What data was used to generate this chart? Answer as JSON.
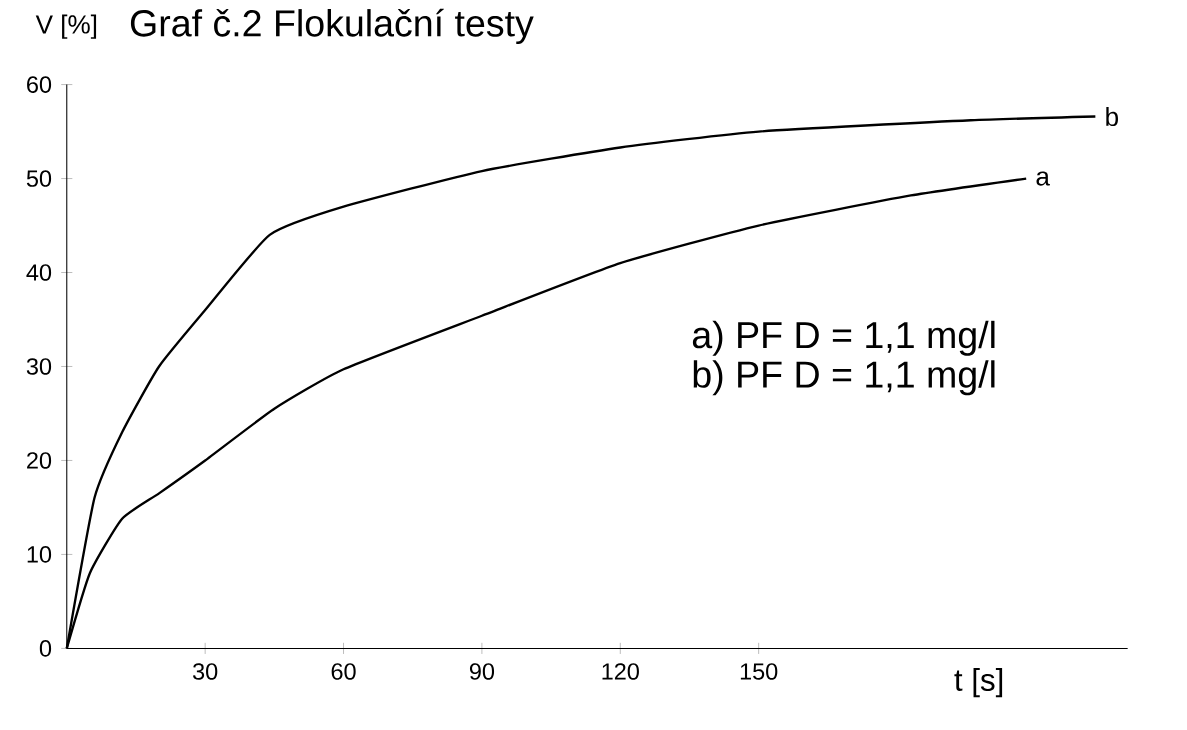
{
  "chart_data": {
    "type": "line",
    "title": "Graf č.2 Flokulační testy",
    "xlabel": "t [s]",
    "ylabel": "V [%]",
    "series": [
      {
        "name": "a",
        "color": "#000000",
        "x": [
          0,
          5,
          12,
          20,
          30,
          45,
          60,
          90,
          120,
          150,
          183,
          208
        ],
        "values": [
          0,
          8,
          13.8,
          16.5,
          20,
          25.5,
          29.7,
          35.4,
          41,
          45,
          48.2,
          50
        ]
      },
      {
        "name": "b",
        "color": "#000000",
        "x": [
          0,
          6,
          12,
          20,
          30,
          44,
          60,
          90,
          120,
          150,
          196,
          223
        ],
        "values": [
          0,
          16,
          23,
          30,
          36,
          44,
          47,
          50.8,
          53.3,
          55,
          56.2,
          56.6
        ]
      }
    ],
    "xlim": [
      0,
      230
    ],
    "ylim": [
      0,
      60
    ],
    "xticks": [
      30,
      60,
      90,
      120,
      150
    ],
    "yticks": [
      0,
      10,
      20,
      30,
      40,
      50,
      60
    ],
    "grid": false,
    "marker": "none",
    "line_style": "solid",
    "annotations": [
      "a) PF D = 1,1 mg/l",
      "b) PF D = 1,1 mg/l"
    ]
  }
}
